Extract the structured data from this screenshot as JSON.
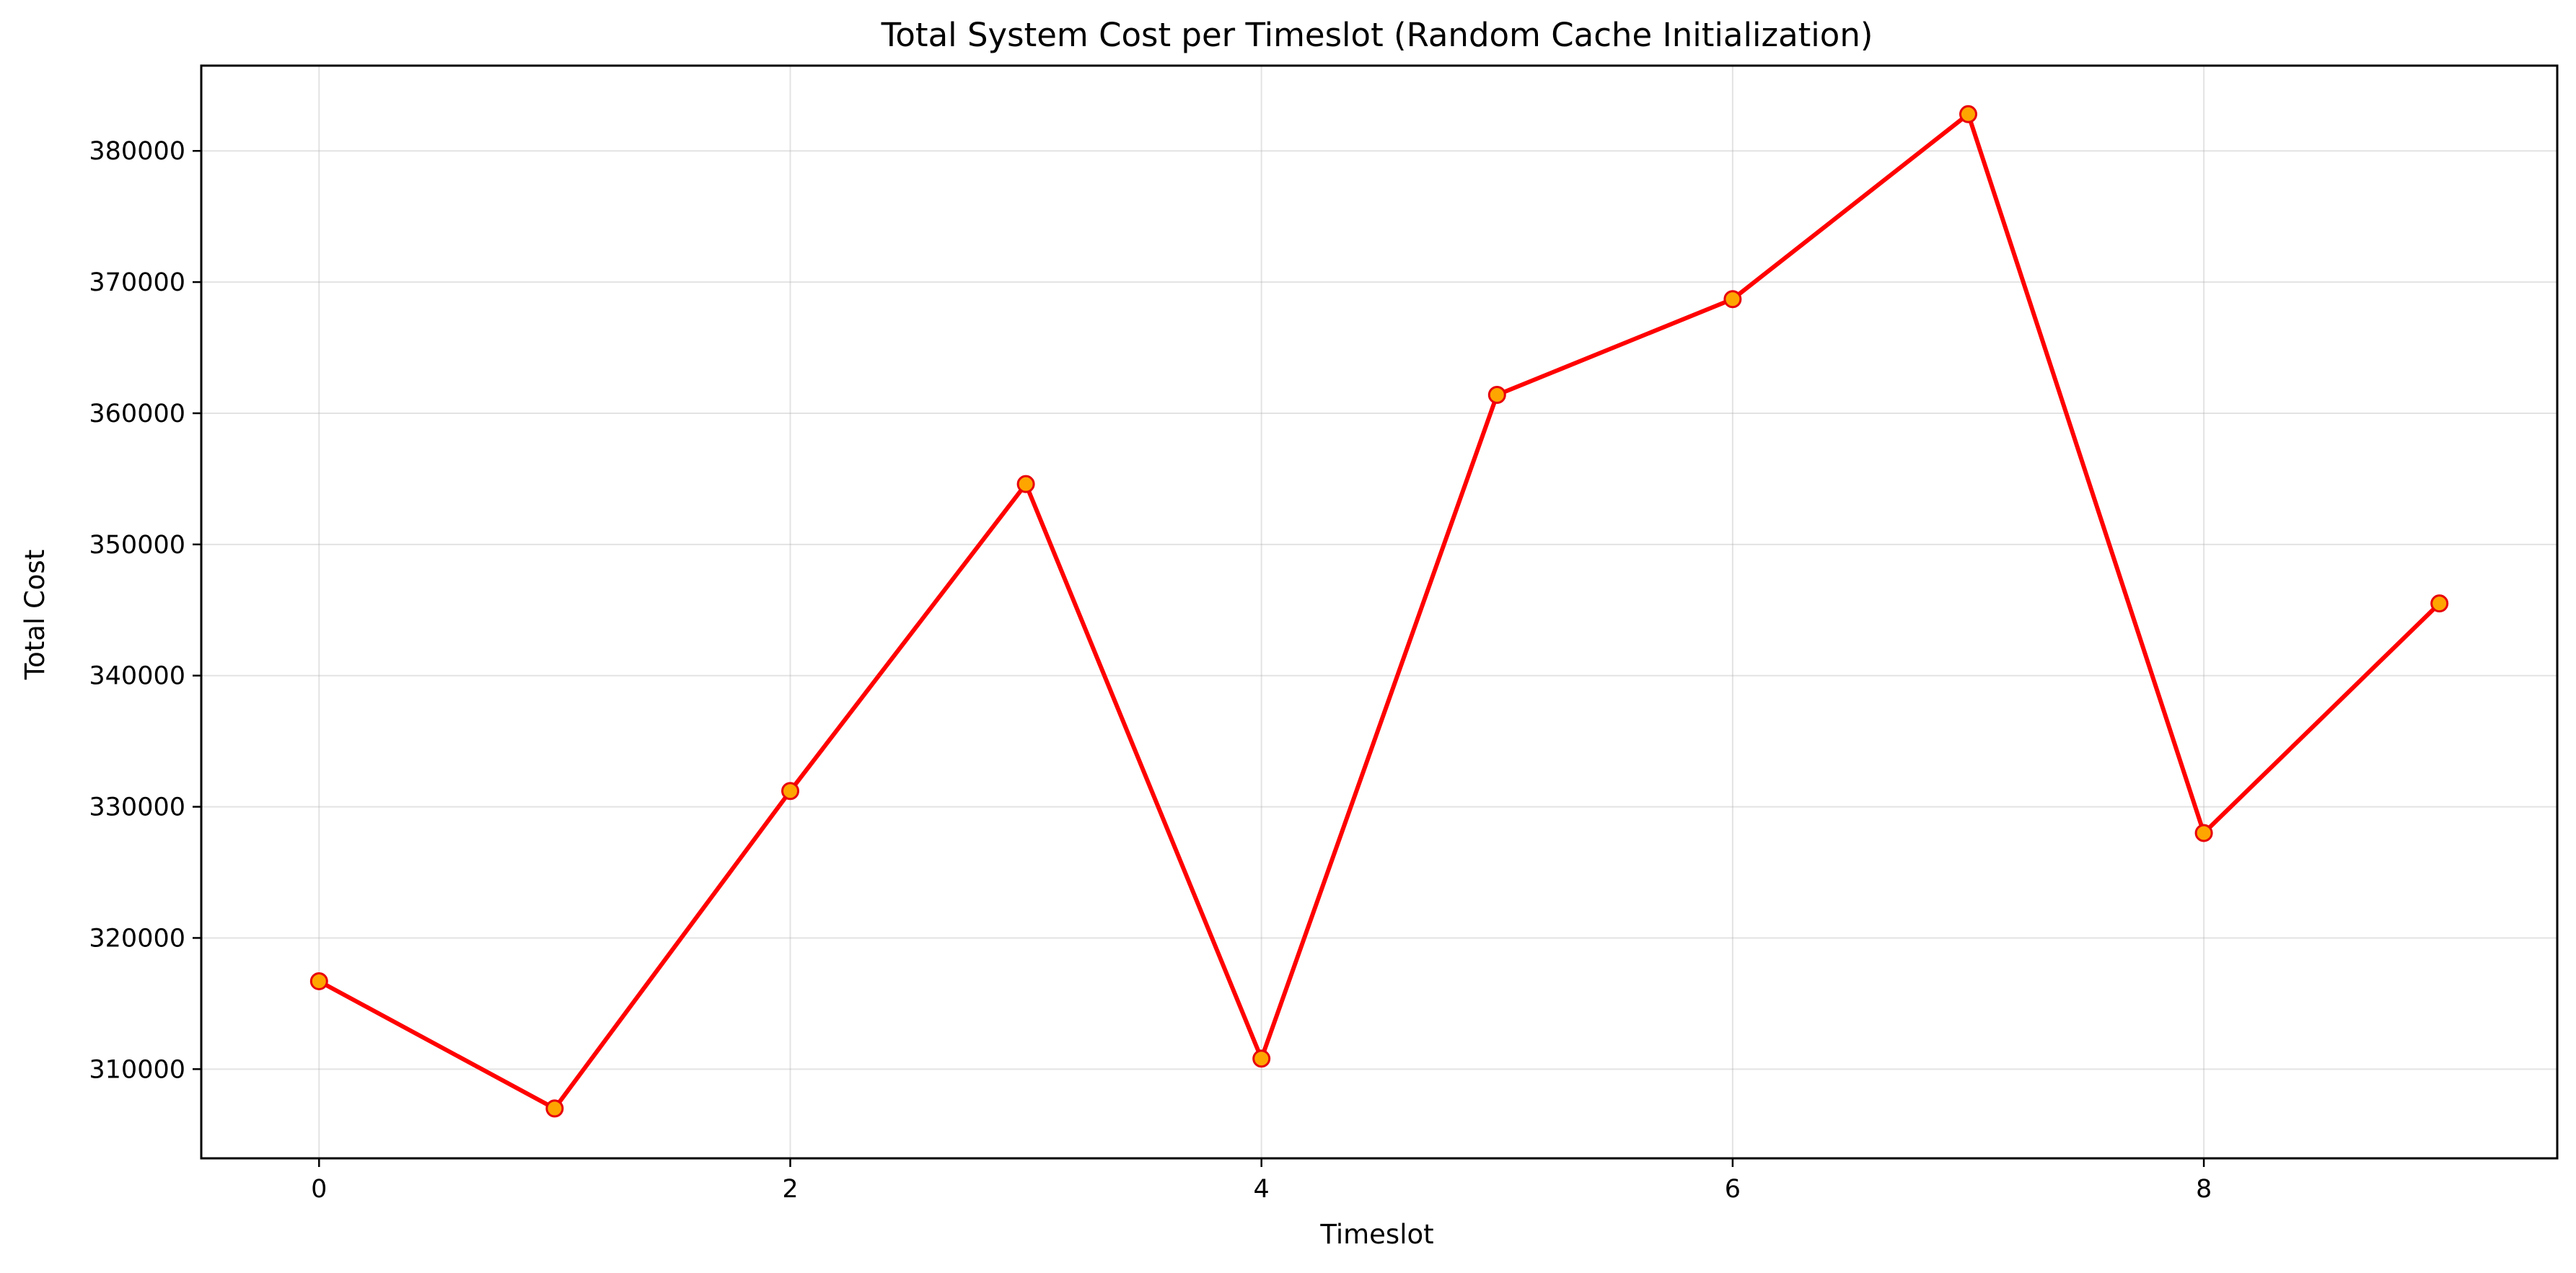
{
  "chart_data": {
    "type": "line",
    "title": "Total System Cost per Timeslot (Random Cache Initialization)",
    "xlabel": "Timeslot",
    "ylabel": "Total Cost",
    "x": [
      0,
      1,
      2,
      3,
      4,
      5,
      6,
      7,
      8,
      9
    ],
    "series": [
      {
        "values": [
          316700,
          307000,
          331200,
          354600,
          310800,
          361400,
          368700,
          382800,
          328000,
          345500
        ],
        "line_color": "#ff0000",
        "marker_face": "#ffa500",
        "marker_edge": "#e8000b"
      }
    ],
    "xlim": [
      -0.5,
      9.5
    ],
    "ylim": [
      303200,
      386500
    ],
    "xticks": [
      0,
      2,
      4,
      6,
      8
    ],
    "yticks": [
      310000,
      320000,
      330000,
      340000,
      350000,
      360000,
      370000,
      380000
    ],
    "grid": true,
    "legend": "none"
  }
}
